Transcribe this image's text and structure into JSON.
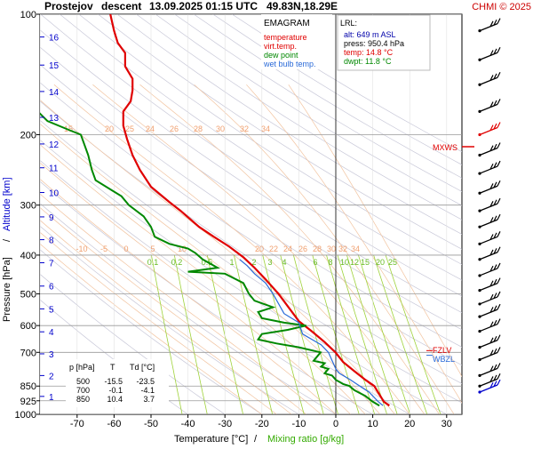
{
  "header": {
    "station": "Prostejov",
    "mode": "descent",
    "datetime": "13.09.2025 01:15 UTC",
    "coords": "49.83N,18.29E",
    "credit": "CHMI © 2025"
  },
  "chart_data": {
    "type": "line",
    "diagram": "EMAGRAM",
    "xlabel_temp": "Temperature [°C]",
    "xlabel_sep": "/",
    "xlabel_mix": "Mixing ratio [g/kg]",
    "ylabel_pressure": "Pressure [hPa]",
    "ylabel_sep": "/",
    "ylabel_alt": "Altitude [km]",
    "xlim": [
      -82,
      38
    ],
    "ylim_hpa": [
      1000,
      100
    ],
    "y_scale": "log",
    "x_ticks": [
      -70,
      -60,
      -50,
      -40,
      -30,
      -20,
      -10,
      0,
      10,
      20,
      30
    ],
    "p_ticks": [
      100,
      200,
      300,
      400,
      500,
      600,
      700,
      850,
      925,
      1000
    ],
    "alt_ticks_km": [
      {
        "km": "1",
        "p": 902
      },
      {
        "km": "2",
        "p": 800
      },
      {
        "km": "3",
        "p": 706
      },
      {
        "km": "4",
        "p": 622
      },
      {
        "km": "5",
        "p": 545
      },
      {
        "km": "6",
        "p": 478
      },
      {
        "km": "7",
        "p": 418
      },
      {
        "km": "8",
        "p": 366
      },
      {
        "km": "9",
        "p": 321
      },
      {
        "km": "10",
        "p": 279
      },
      {
        "km": "11",
        "p": 242
      },
      {
        "km": "12",
        "p": 211
      },
      {
        "km": "13",
        "p": 181
      },
      {
        "km": "14",
        "p": 156
      },
      {
        "km": "15",
        "p": 134
      },
      {
        "km": "16",
        "p": 114
      }
    ],
    "legend": [
      {
        "name": "temperature",
        "color": "#e00000"
      },
      {
        "name": "virt.temp.",
        "color": "#e00000"
      },
      {
        "name": "dew point",
        "color": "#008800"
      },
      {
        "name": "wet bulb temp.",
        "color": "#2a6ad8"
      }
    ],
    "series": [
      {
        "name": "temperature",
        "color": "#e00000",
        "points": [
          [
            14.5,
            951
          ],
          [
            13,
            930
          ],
          [
            10.4,
            850
          ],
          [
            8,
            820
          ],
          [
            5,
            780
          ],
          [
            2,
            740
          ],
          [
            -0.1,
            700
          ],
          [
            -3,
            660
          ],
          [
            -6.5,
            620
          ],
          [
            -10,
            585
          ],
          [
            -15.5,
            500
          ],
          [
            -19,
            460
          ],
          [
            -22,
            430
          ],
          [
            -25,
            405
          ],
          [
            -29,
            380
          ],
          [
            -33,
            360
          ],
          [
            -37,
            340
          ],
          [
            -42,
            310
          ],
          [
            -45,
            295
          ],
          [
            -50,
            270
          ],
          [
            -53,
            245
          ],
          [
            -55,
            225
          ],
          [
            -56.5,
            205
          ],
          [
            -57.5,
            190
          ],
          [
            -57.5,
            175
          ],
          [
            -55.5,
            165
          ],
          [
            -55,
            155
          ],
          [
            -55,
            145
          ],
          [
            -57,
            135
          ],
          [
            -57,
            125
          ],
          [
            -59,
            118
          ],
          [
            -60,
            110
          ],
          [
            -61,
            100
          ]
        ]
      },
      {
        "name": "dew point",
        "color": "#008800",
        "points": [
          [
            11.8,
            951
          ],
          [
            10,
            930
          ],
          [
            8,
            900
          ],
          [
            5,
            870
          ],
          [
            3.7,
            850
          ],
          [
            2,
            840
          ],
          [
            0,
            820
          ],
          [
            -1,
            800
          ],
          [
            -3,
            790
          ],
          [
            -2,
            770
          ],
          [
            -4,
            760
          ],
          [
            -3,
            745
          ],
          [
            -6,
            735
          ],
          [
            -4.1,
            700
          ],
          [
            -10,
            680
          ],
          [
            -16,
            665
          ],
          [
            -21,
            650
          ],
          [
            -20,
            630
          ],
          [
            -13,
            615
          ],
          [
            -8,
            600
          ],
          [
            -14,
            590
          ],
          [
            -20,
            575
          ],
          [
            -21,
            555
          ],
          [
            -17,
            540
          ],
          [
            -22,
            520
          ],
          [
            -23.5,
            500
          ],
          [
            -25,
            470
          ],
          [
            -30,
            445
          ],
          [
            -40,
            440
          ],
          [
            -32,
            430
          ],
          [
            -36,
            410
          ],
          [
            -38,
            395
          ],
          [
            -40,
            385
          ],
          [
            -45,
            375
          ],
          [
            -49,
            360
          ],
          [
            -50,
            340
          ],
          [
            -52,
            320
          ],
          [
            -56,
            300
          ],
          [
            -58,
            285
          ],
          [
            -65,
            260
          ],
          [
            -66,
            245
          ],
          [
            -67,
            225
          ],
          [
            -69,
            200
          ],
          [
            -72,
            195
          ],
          [
            -78,
            185
          ],
          [
            -82,
            170
          ]
        ]
      },
      {
        "name": "wet bulb temp.",
        "color": "#2a6ad8",
        "points": [
          [
            12.8,
            951
          ],
          [
            11.5,
            930
          ],
          [
            9,
            880
          ],
          [
            6.5,
            850
          ],
          [
            4,
            820
          ],
          [
            1,
            790
          ],
          [
            0,
            770
          ],
          [
            -2,
            700
          ],
          [
            -4,
            670
          ],
          [
            -9,
            630
          ],
          [
            -10,
            590
          ],
          [
            -14,
            560
          ],
          [
            -17,
            500
          ],
          [
            -19,
            470
          ],
          [
            -22,
            445
          ],
          [
            -24,
            425
          ],
          [
            -26,
            410
          ]
        ]
      }
    ],
    "observations": {
      "headers": [
        "p [hPa]",
        "T",
        "Td [°C]"
      ],
      "rows": [
        [
          "500",
          "-15.5",
          "-23.5"
        ],
        [
          "700",
          "-0.1",
          "-4.1"
        ],
        [
          "850",
          "10.4",
          "3.7"
        ]
      ]
    },
    "mixing_ratio_labels": [
      "0.1",
      "0.2",
      "0.5",
      "1",
      "2",
      "3",
      "4",
      "6",
      "8",
      "10",
      "12",
      "15",
      "20",
      "25"
    ],
    "isotherm_labels_top": [
      "15",
      "20",
      "25",
      "24",
      "26",
      "28",
      "30",
      "32",
      "34"
    ],
    "isotherm_labels_mid": [
      "-10",
      "-5",
      "0",
      "5",
      "10",
      "20",
      "22",
      "24",
      "26",
      "28",
      "30",
      "32",
      "34"
    ],
    "markers": {
      "mxws": "MXWS",
      "fzlv": "FZLV",
      "wbzl": "WBZL"
    },
    "lrl": {
      "title": "LRL:",
      "alt": "alt: 649 m ASL",
      "press": "press: 950.4 hPa",
      "temp": "temp: 14.8 °C",
      "dwpt": "dwpt: 11.8 °C"
    },
    "wind_barbs_hpa": [
      110,
      130,
      150,
      175,
      200,
      225,
      250,
      280,
      310,
      340,
      375,
      410,
      450,
      490,
      530,
      570,
      620,
      680,
      730,
      800,
      850,
      880
    ]
  }
}
